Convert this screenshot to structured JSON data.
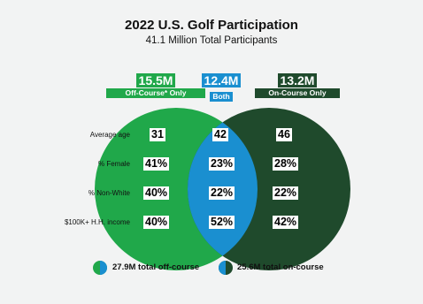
{
  "title": "2022 U.S. Golf Participation",
  "subtitle": "41.1 Million Total Participants",
  "groups": [
    {
      "key": "off",
      "value": "15.5M",
      "label": "Off-Course* Only",
      "color": "#20a84a"
    },
    {
      "key": "both",
      "value": "12.4M",
      "label": "Both",
      "color": "#1a8fd0"
    },
    {
      "key": "on",
      "value": "13.2M",
      "label": "On-Course Only",
      "color": "#1f4a2c"
    }
  ],
  "rows": [
    {
      "label": "Average age",
      "off": "31",
      "both": "42",
      "on": "46"
    },
    {
      "label": "% Female",
      "off": "41%",
      "both": "23%",
      "on": "28%"
    },
    {
      "label": "% Non-White",
      "off": "40%",
      "both": "22%",
      "on": "22%"
    },
    {
      "label": "$100K+ H.H. income",
      "off": "40%",
      "both": "52%",
      "on": "42%"
    }
  ],
  "legend": {
    "off_course": "27.9M total off-course",
    "on_course": "25.6M total on-course"
  },
  "colors": {
    "off_course": "#20a84a",
    "both": "#1a8fd0",
    "on_course": "#1f4a2c",
    "background": "#f2f3f3"
  }
}
